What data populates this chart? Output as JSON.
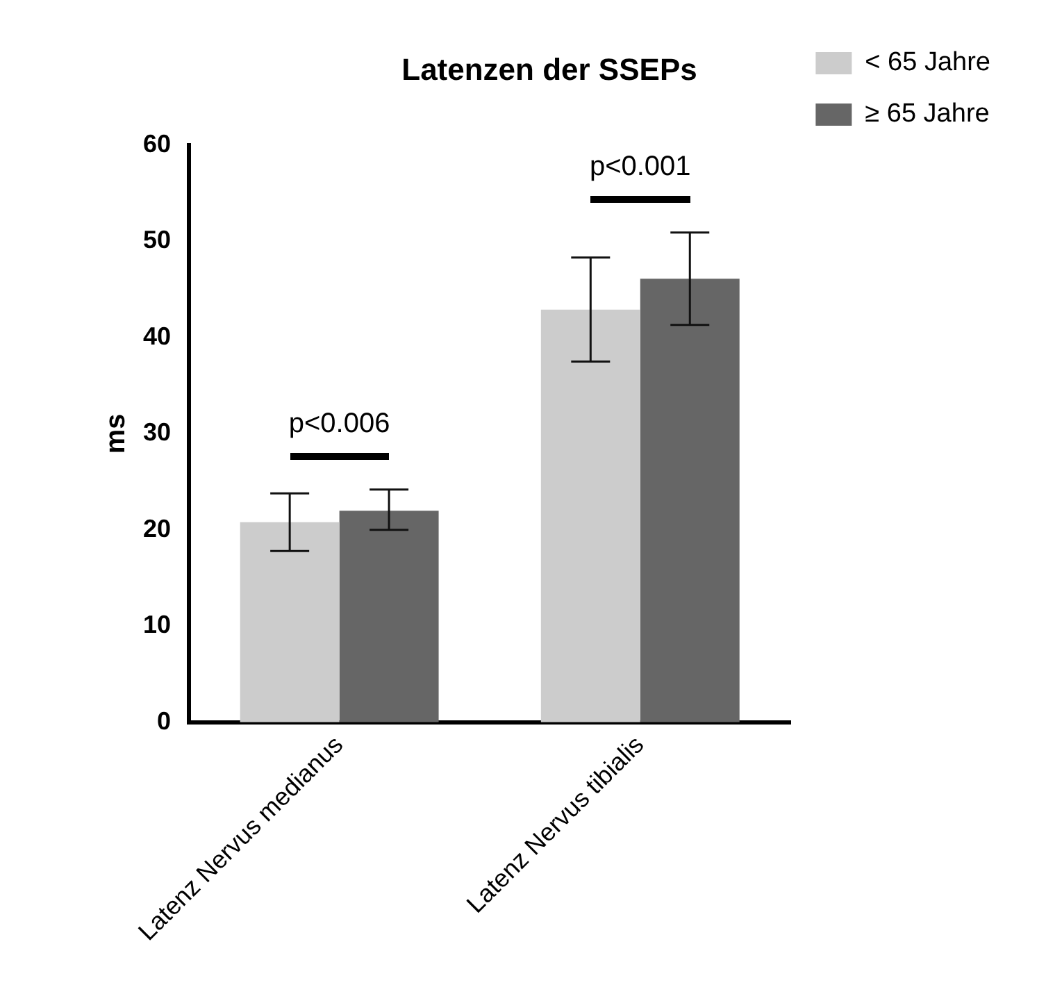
{
  "chart_data": {
    "type": "bar",
    "title": "Latenzen der SSEPs",
    "ylabel": "ms",
    "categories": [
      "Latenz Nervus medianus",
      "Latenz Nervus tibialis"
    ],
    "series": [
      {
        "name": "< 65 Jahre",
        "color": "#cccccc",
        "values": [
          20.8,
          42.9
        ],
        "errors": [
          [
            17.8,
            23.8
          ],
          [
            37.5,
            48.3
          ]
        ]
      },
      {
        "name": "≥ 65 Jahre",
        "color": "#666666",
        "values": [
          22.0,
          46.1
        ],
        "errors": [
          [
            20.0,
            24.2
          ],
          [
            41.3,
            50.9
          ]
        ]
      }
    ],
    "ylim": [
      0,
      60
    ],
    "yticks": [
      0,
      10,
      20,
      30,
      40,
      50,
      60
    ],
    "grid": false,
    "legend": "top right",
    "annotations": [
      "p<0.006",
      "p<0.001"
    ]
  }
}
